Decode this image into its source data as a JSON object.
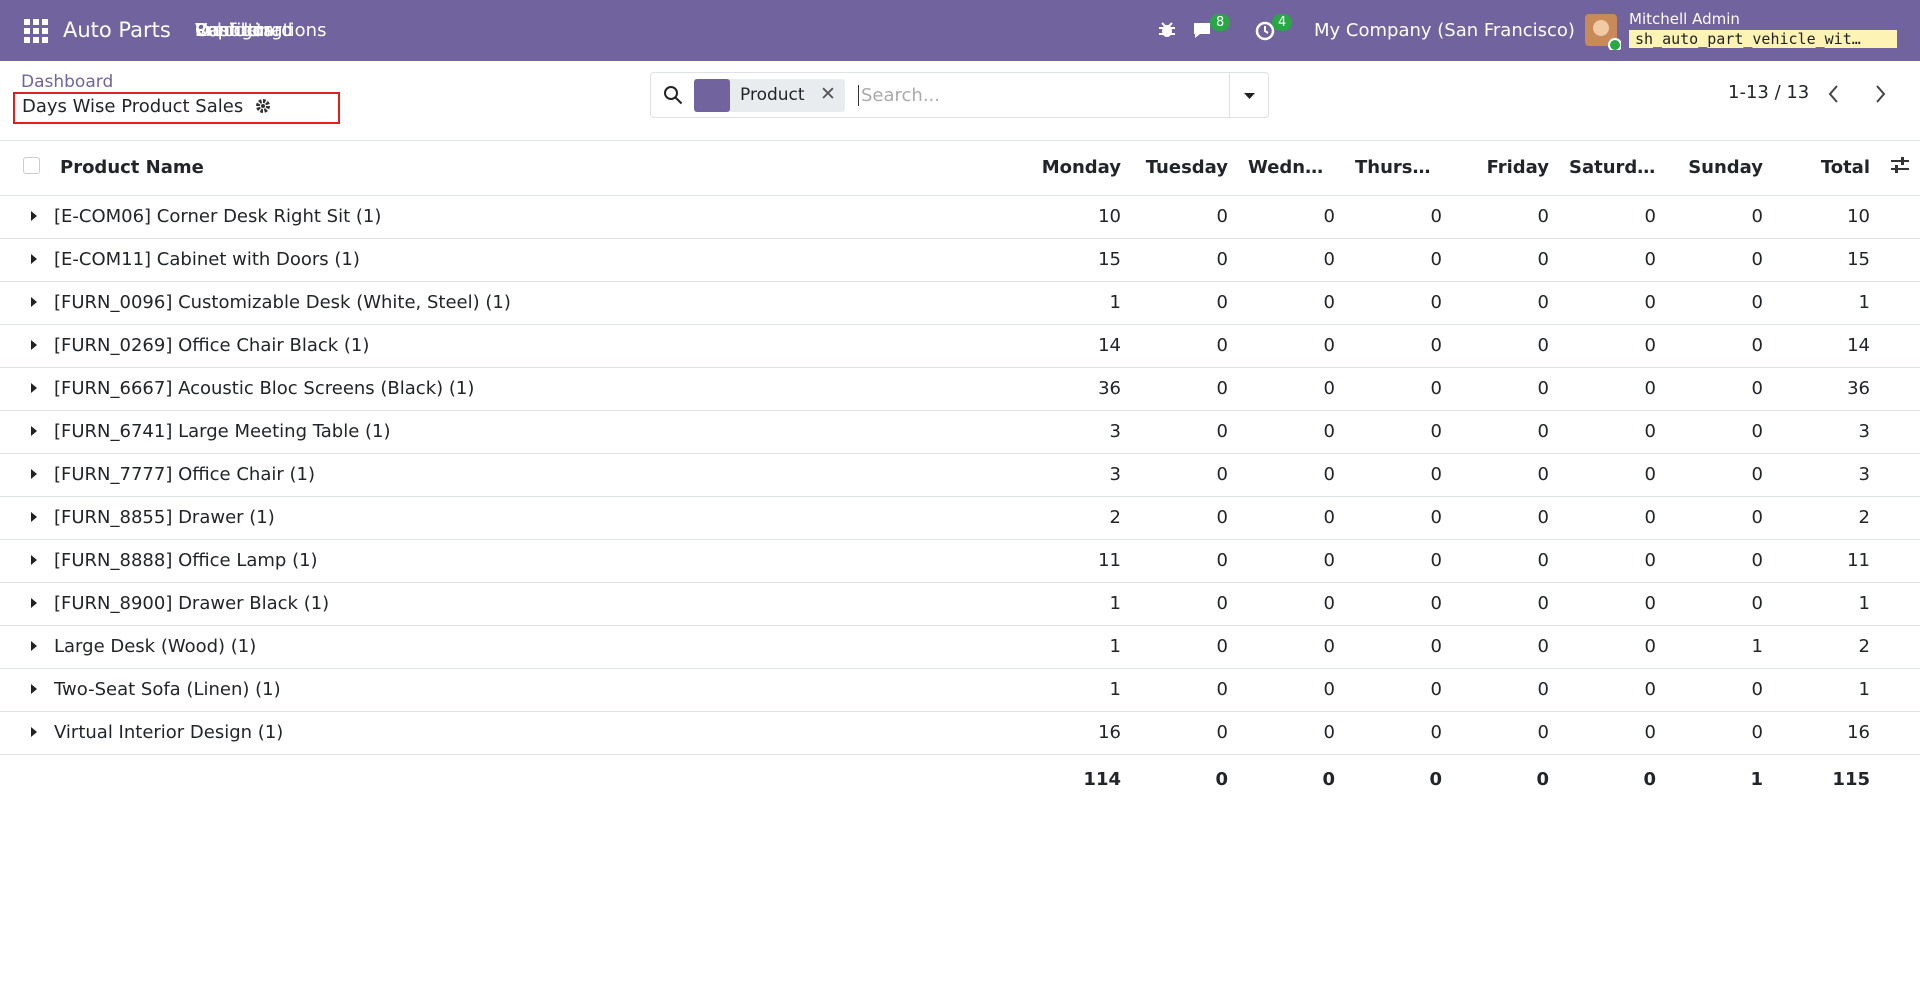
{
  "navbar": {
    "app_name": "Auto Parts",
    "menu": [
      "Dashboard",
      "Vehicle",
      "Products",
      "Reporting",
      "Configurations"
    ],
    "messages_badge": "8",
    "activities_badge": "4",
    "company": "My Company (San Francisco)",
    "user": "Mitchell Admin",
    "database": "sh_auto_part_vehicle_wit…"
  },
  "control_panel": {
    "breadcrumb": "Dashboard",
    "title": "Days Wise Product Sales",
    "search_facet": "Product",
    "search_placeholder": "Search...",
    "pager": "1-13 / 13"
  },
  "table": {
    "columns": [
      "Product Name",
      "Monday",
      "Tuesday",
      "Wednes...",
      "Thursday",
      "Friday",
      "Saturday",
      "Sunday",
      "Total"
    ],
    "rows": [
      [
        "[E-COM06] Corner Desk Right Sit (1)",
        10,
        0,
        0,
        0,
        0,
        0,
        0,
        10
      ],
      [
        "[E-COM11] Cabinet with Doors (1)",
        15,
        0,
        0,
        0,
        0,
        0,
        0,
        15
      ],
      [
        "[FURN_0096] Customizable Desk (White, Steel) (1)",
        1,
        0,
        0,
        0,
        0,
        0,
        0,
        1
      ],
      [
        "[FURN_0269] Office Chair Black (1)",
        14,
        0,
        0,
        0,
        0,
        0,
        0,
        14
      ],
      [
        "[FURN_6667] Acoustic Bloc Screens (Black) (1)",
        36,
        0,
        0,
        0,
        0,
        0,
        0,
        36
      ],
      [
        "[FURN_6741] Large Meeting Table (1)",
        3,
        0,
        0,
        0,
        0,
        0,
        0,
        3
      ],
      [
        "[FURN_7777] Office Chair (1)",
        3,
        0,
        0,
        0,
        0,
        0,
        0,
        3
      ],
      [
        "[FURN_8855] Drawer (1)",
        2,
        0,
        0,
        0,
        0,
        0,
        0,
        2
      ],
      [
        "[FURN_8888] Office Lamp (1)",
        11,
        0,
        0,
        0,
        0,
        0,
        0,
        11
      ],
      [
        "[FURN_8900] Drawer Black (1)",
        1,
        0,
        0,
        0,
        0,
        0,
        0,
        1
      ],
      [
        "Large Desk (Wood) (1)",
        1,
        0,
        0,
        0,
        0,
        0,
        1,
        2
      ],
      [
        "Two-Seat Sofa (Linen) (1)",
        1,
        0,
        0,
        0,
        0,
        0,
        0,
        1
      ],
      [
        "Virtual Interior Design (1)",
        16,
        0,
        0,
        0,
        0,
        0,
        0,
        16
      ]
    ],
    "totals": [
      114,
      0,
      0,
      0,
      0,
      0,
      1,
      115
    ]
  }
}
